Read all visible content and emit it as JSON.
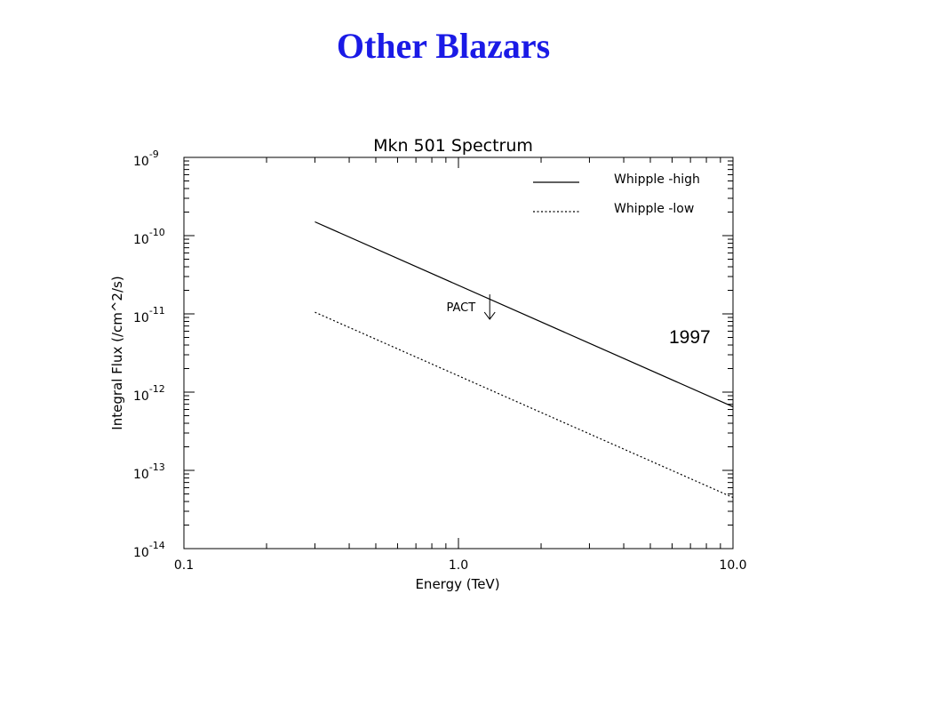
{
  "slide": {
    "title": "Other Blazars",
    "year_label": "1997"
  },
  "chart_data": {
    "type": "line",
    "title": "Mkn 501 Spectrum",
    "xlabel": "Energy (TeV)",
    "ylabel": "Integral Flux (/cm^2/s)",
    "x_scale": "log",
    "y_scale": "log",
    "xlim": [
      0.1,
      10.0
    ],
    "ylim": [
      1e-14,
      1e-09
    ],
    "x_ticks": [
      {
        "value": 0.1,
        "label": "0.1"
      },
      {
        "value": 1.0,
        "label": "1.0"
      },
      {
        "value": 10.0,
        "label": "10.0"
      }
    ],
    "y_ticks": [
      {
        "value": 1e-09,
        "mantissa": "10",
        "exponent": "-9"
      },
      {
        "value": 1e-10,
        "mantissa": "10",
        "exponent": "-10"
      },
      {
        "value": 1e-11,
        "mantissa": "10",
        "exponent": "-11"
      },
      {
        "value": 1e-12,
        "mantissa": "10",
        "exponent": "-12"
      },
      {
        "value": 1e-13,
        "mantissa": "10",
        "exponent": "-13"
      },
      {
        "value": 1e-14,
        "mantissa": "10",
        "exponent": "-14"
      }
    ],
    "grid": false,
    "legend": "top-right",
    "series": [
      {
        "name": "Whipple -high",
        "style": "solid",
        "x": [
          0.3,
          10.0
        ],
        "y": [
          1.5e-10,
          6.5e-13
        ]
      },
      {
        "name": "Whipple -low",
        "style": "dotted",
        "x": [
          0.3,
          10.0
        ],
        "y": [
          1.05e-11,
          4.5e-14
        ]
      }
    ],
    "annotations": [
      {
        "text": "PACT",
        "type": "upper-limit",
        "x": 1.3,
        "y": 1.6e-11
      }
    ]
  }
}
